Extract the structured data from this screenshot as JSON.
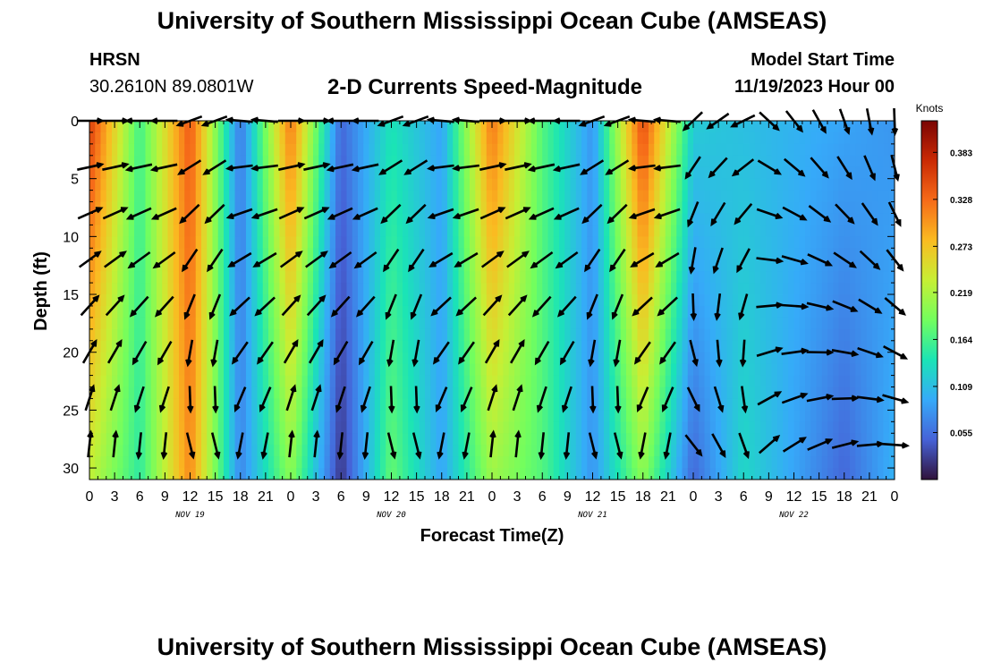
{
  "header": {
    "title": "University of Southern Mississippi Ocean Cube (AMSEAS)",
    "station": "HRSN",
    "coords": "30.2610N  89.0801W",
    "subtitle": "2-D Currents Speed-Magnitude",
    "model_start_label": "Model Start Time",
    "model_start_value": "11/19/2023 Hour 00"
  },
  "footer": {
    "title": "University of Southern Mississippi Ocean Cube (AMSEAS)"
  },
  "chart_data": {
    "type": "heatmap",
    "title": "2-D Currents Speed-Magnitude",
    "xlabel": "Forecast Time(Z)",
    "ylabel": "Depth (ft)",
    "xlim": [
      0,
      96
    ],
    "ylim": [
      0,
      31
    ],
    "x_tick_labels": [
      "0",
      "3",
      "6",
      "9",
      "12",
      "15",
      "18",
      "21",
      "0",
      "3",
      "6",
      "9",
      "12",
      "15",
      "18",
      "21",
      "0",
      "3",
      "6",
      "9",
      "12",
      "15",
      "18",
      "21",
      "0",
      "3",
      "6",
      "9",
      "12",
      "15",
      "18",
      "21",
      "0"
    ],
    "y_ticks": [
      0,
      5,
      10,
      15,
      20,
      25,
      30
    ],
    "day_labels": [
      {
        "label": "NOV 19",
        "hour": 12
      },
      {
        "label": "NOV 20",
        "hour": 36
      },
      {
        "label": "NOV 21",
        "hour": 60
      },
      {
        "label": "NOV 22",
        "hour": 84
      }
    ],
    "colorbar": {
      "units": "Knots",
      "min": 0.0,
      "max": 0.42,
      "tick_labels": [
        "0.383",
        "0.328",
        "0.273",
        "0.219",
        "0.164",
        "0.109",
        "0.055"
      ],
      "tick_values": [
        0.383,
        0.328,
        0.273,
        0.219,
        0.164,
        0.109,
        0.055
      ],
      "colors": [
        "#30123b",
        "#4662d7",
        "#36aaf9",
        "#1ae4b6",
        "#72fe5e",
        "#c7ef34",
        "#fabb21",
        "#f66b19",
        "#ca2a04",
        "#7a0403"
      ]
    },
    "time_hours": [
      0,
      6,
      12,
      18,
      24,
      30,
      36,
      42,
      48,
      54,
      60,
      66,
      72,
      78,
      84,
      90,
      96
    ],
    "speed_surface_knots": [
      0.36,
      0.16,
      0.34,
      0.06,
      0.32,
      0.05,
      0.14,
      0.09,
      0.32,
      0.17,
      0.08,
      0.35,
      0.12,
      0.11,
      0.1,
      0.09,
      0.08
    ],
    "speed_bottom_knots": [
      0.23,
      0.15,
      0.31,
      0.07,
      0.2,
      0.02,
      0.18,
      0.09,
      0.21,
      0.17,
      0.08,
      0.2,
      0.05,
      0.13,
      0.09,
      0.05,
      0.1
    ],
    "vector_depths_ft": [
      0,
      4,
      8,
      12,
      16,
      20,
      24,
      28
    ]
  }
}
